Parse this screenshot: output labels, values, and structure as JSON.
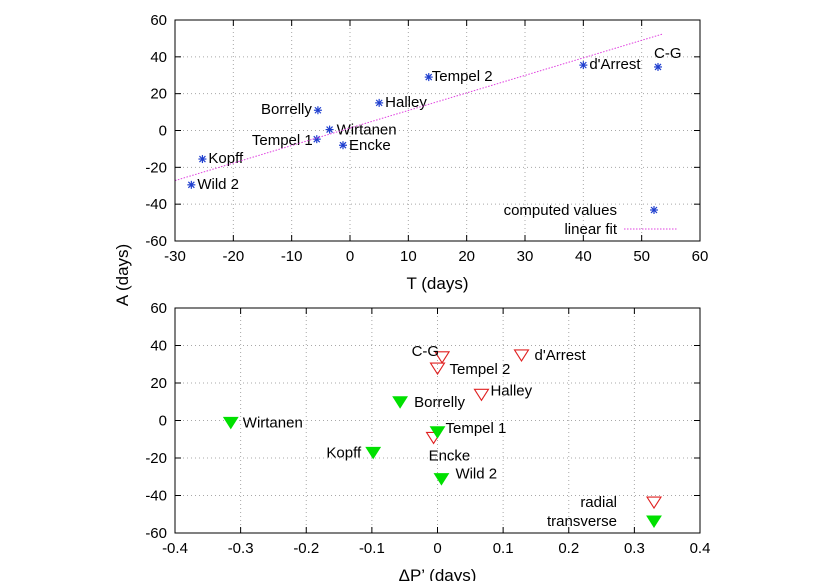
{
  "figure": {
    "ylabel": "A (days)"
  },
  "chart_data": [
    {
      "type": "scatter",
      "xlabel": "T (days)",
      "ylabel": "A (days)",
      "xlim": [
        -30,
        60
      ],
      "ylim": [
        -60,
        60
      ],
      "xticks": [
        -30,
        -20,
        -10,
        0,
        10,
        20,
        30,
        40,
        50,
        60
      ],
      "yticks": [
        -60,
        -40,
        -20,
        0,
        20,
        40,
        60
      ],
      "grid": true,
      "legend_position": "bottom-right",
      "series": [
        {
          "name": "computed values",
          "marker": "asterisk",
          "color": "#1f3fcf",
          "points": [
            {
              "label": "Wild 2",
              "x": -27.2,
              "y": -29.5
            },
            {
              "label": "Kopff",
              "x": -25.3,
              "y": -15.5
            },
            {
              "label": "Tempel 1",
              "x": -5.7,
              "y": -4.7
            },
            {
              "label": "Borrelly",
              "x": -5.5,
              "y": 11
            },
            {
              "label": "Wirtanen",
              "x": -3.5,
              "y": 0.5
            },
            {
              "label": "Encke",
              "x": -1.2,
              "y": -8
            },
            {
              "label": "Halley",
              "x": 5,
              "y": 15
            },
            {
              "label": "Tempel 2",
              "x": 13.5,
              "y": 29
            },
            {
              "label": "d'Arrest",
              "x": 40,
              "y": 35.5
            },
            {
              "label": "C-G",
              "x": 52.8,
              "y": 34.5
            }
          ]
        },
        {
          "name": "linear fit",
          "style": "dotted-line",
          "color": "#e040e0",
          "from": [
            -30,
            -27.2
          ],
          "to": [
            53.5,
            52.3
          ]
        }
      ]
    },
    {
      "type": "scatter",
      "xlabel": "ΔP’ (days)",
      "ylabel": "A (days)",
      "xlim": [
        -0.4,
        0.4
      ],
      "ylim": [
        -60,
        60
      ],
      "xticks": [
        -0.4,
        -0.3,
        -0.2,
        -0.1,
        0,
        0.1,
        0.2,
        0.3,
        0.4
      ],
      "yticks": [
        -60,
        -40,
        -20,
        0,
        20,
        40,
        60
      ],
      "grid": true,
      "legend_position": "bottom-right",
      "series": [
        {
          "name": "radial",
          "marker": "open-triangle-down",
          "color": "#e02020",
          "points": [
            {
              "label": "C-G",
              "x": 0.007,
              "y": 34
            },
            {
              "label": "Tempel 2",
              "x": 0.0,
              "y": 28
            },
            {
              "label": "d'Arrest",
              "x": 0.128,
              "y": 35
            },
            {
              "label": "Halley",
              "x": 0.067,
              "y": 14
            },
            {
              "label": "Encke",
              "x": -0.006,
              "y": -9
            }
          ]
        },
        {
          "name": "transverse",
          "marker": "filled-triangle-down",
          "color": "#00e000",
          "points": [
            {
              "label": "Wirtanen",
              "x": -0.315,
              "y": -1
            },
            {
              "label": "Borrelly",
              "x": -0.057,
              "y": 10
            },
            {
              "label": "Tempel 1",
              "x": 0.0,
              "y": -6
            },
            {
              "label": "Kopff",
              "x": -0.098,
              "y": -17
            },
            {
              "label": "Wild 2",
              "x": 0.006,
              "y": -31
            }
          ]
        }
      ]
    }
  ]
}
